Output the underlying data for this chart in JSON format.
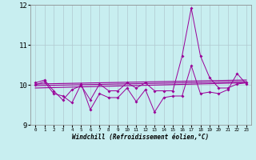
{
  "xlabel": "Windchill (Refroidissement éolien,°C)",
  "bg_color": "#c8eef0",
  "grid_color": "#b0c8d0",
  "line_color": "#990099",
  "xlim": [
    -0.5,
    23.5
  ],
  "ylim": [
    9,
    12
  ],
  "yticks": [
    9,
    10,
    11,
    12
  ],
  "xticks": [
    0,
    1,
    2,
    3,
    4,
    5,
    6,
    7,
    8,
    9,
    10,
    11,
    12,
    13,
    14,
    15,
    16,
    17,
    18,
    19,
    20,
    21,
    22,
    23
  ],
  "series1": [
    10.05,
    10.12,
    9.85,
    9.62,
    9.88,
    9.98,
    9.62,
    10.02,
    9.85,
    9.85,
    10.05,
    9.92,
    10.05,
    9.85,
    9.85,
    9.85,
    10.72,
    11.92,
    10.72,
    10.18,
    9.92,
    9.92,
    10.02,
    10.05
  ],
  "series2": [
    10.0,
    10.08,
    9.78,
    9.72,
    9.55,
    10.02,
    9.38,
    9.78,
    9.68,
    9.68,
    9.92,
    9.58,
    9.88,
    9.32,
    9.68,
    9.72,
    9.72,
    10.48,
    9.78,
    9.82,
    9.78,
    9.88,
    10.28,
    10.02
  ],
  "trend1_x": [
    0,
    23
  ],
  "trend1_y": [
    10.02,
    10.12
  ],
  "trend2_x": [
    0,
    23
  ],
  "trend2_y": [
    9.92,
    10.05
  ],
  "trend3_x": [
    0,
    23
  ],
  "trend3_y": [
    9.98,
    10.08
  ]
}
